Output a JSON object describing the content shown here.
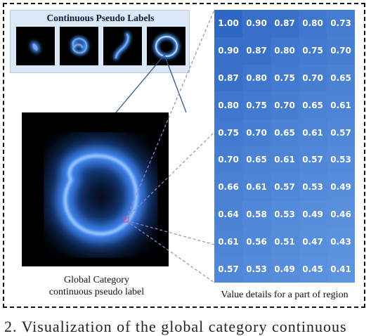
{
  "continuous_panel": {
    "title": "Continuous Pseudo Labels"
  },
  "global_caption": {
    "line1": "Global Category",
    "line2": "continuous pseudo label"
  },
  "grid_caption": "Value details for a part of region",
  "value_grid": [
    [
      "1.00",
      "0.90",
      "0.87",
      "0.80",
      "0.73"
    ],
    [
      "0.90",
      "0.87",
      "0.80",
      "0.75",
      "0.70"
    ],
    [
      "0.87",
      "0.80",
      "0.75",
      "0.70",
      "0.65"
    ],
    [
      "0.80",
      "0.75",
      "0.70",
      "0.65",
      "0.61"
    ],
    [
      "0.75",
      "0.70",
      "0.65",
      "0.61",
      "0.57"
    ],
    [
      "0.70",
      "0.65",
      "0.61",
      "0.57",
      "0.53"
    ],
    [
      "0.66",
      "0.61",
      "0.57",
      "0.53",
      "0.49"
    ],
    [
      "0.64",
      "0.58",
      "0.53",
      "0.49",
      "0.46"
    ],
    [
      "0.61",
      "0.56",
      "0.51",
      "0.47",
      "0.43"
    ],
    [
      "0.57",
      "0.53",
      "0.49",
      "0.45",
      "0.41"
    ]
  ],
  "bottom_caption": "2. Visualization of the global category continuous",
  "colors": {
    "ring_glow": "#4a8ff0",
    "ring_core": "#bfe0ff",
    "panel_bg": "#dbe8f7",
    "connector": "#2c5a8c",
    "dashed_connector": "#9a86c8",
    "grid_high": "#2f68c4",
    "grid_low": "#5d93df"
  }
}
